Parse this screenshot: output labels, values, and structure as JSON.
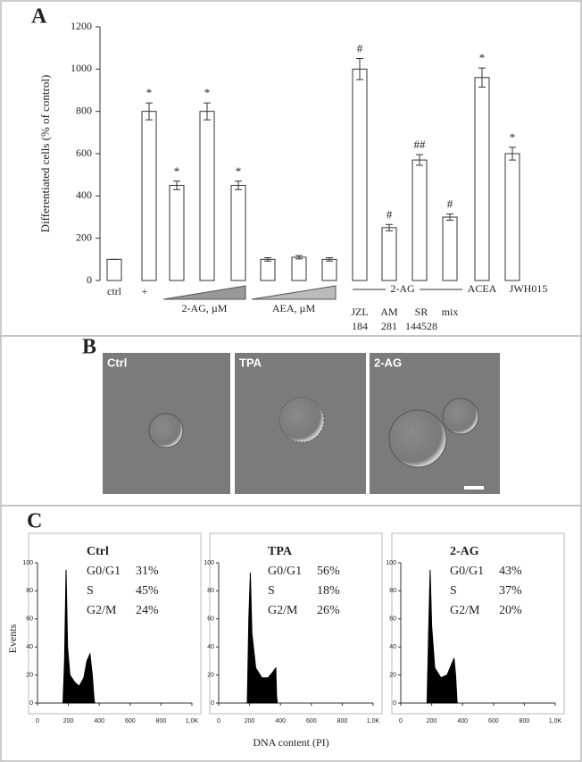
{
  "panel_labels": [
    "A",
    "B",
    "C"
  ],
  "images": {
    "labels": [
      "Ctrl",
      "TPA",
      "2-AG"
    ]
  },
  "panel_c": {
    "ylabel": "Events",
    "xlabel": "DNA content (PI)"
  },
  "chart_data": [
    {
      "type": "bar",
      "ylabel": "Differentiated cells (% of control)",
      "categories": [
        "ctrl",
        "+",
        null,
        null,
        null,
        null,
        null,
        null,
        "JZL",
        "AM",
        "SR",
        "mix",
        "ACEA",
        "JWH015"
      ],
      "category_sublabels": [
        null,
        null,
        null,
        null,
        null,
        null,
        null,
        null,
        "184",
        "281",
        "144528",
        null,
        null,
        null
      ],
      "group_labels": [
        "2-AG, µM",
        "AEA, µM",
        "2-AG"
      ],
      "values": [
        100,
        800,
        450,
        800,
        450,
        100,
        110,
        100,
        1000,
        250,
        570,
        300,
        960,
        600
      ],
      "errors": [
        0,
        40,
        20,
        40,
        20,
        8,
        8,
        8,
        50,
        15,
        25,
        15,
        45,
        30
      ],
      "significance": [
        null,
        "*",
        "*",
        "*",
        "*",
        null,
        null,
        null,
        "#",
        "#",
        "##",
        "#",
        "*",
        "*"
      ],
      "ylim": [
        0,
        1200
      ],
      "yticks": [
        0,
        200,
        400,
        600,
        800,
        1000,
        1200
      ],
      "color": "#ffffff"
    },
    {
      "type": "area",
      "title": "Ctrl",
      "phases": [
        {
          "name": "G0/G1",
          "share": "31%"
        },
        {
          "name": "S",
          "share": "45%"
        },
        {
          "name": "G2/M",
          "share": "24%"
        }
      ],
      "x": [
        165,
        175,
        185,
        195,
        210,
        240,
        270,
        300,
        320,
        340,
        355,
        365,
        370
      ],
      "values": [
        0,
        30,
        95,
        40,
        20,
        15,
        12,
        18,
        30,
        35,
        20,
        5,
        0
      ],
      "xlim": [
        0,
        1000
      ],
      "ylim": [
        0,
        100
      ],
      "xticks": [
        0,
        200,
        400,
        600,
        800,
        {
          "value": 1000,
          "label": "1,0K"
        }
      ],
      "yticks": [
        0,
        20,
        40,
        60,
        80,
        100
      ],
      "color": "#000000"
    },
    {
      "type": "area",
      "title": "TPA",
      "phases": [
        {
          "name": "G0/G1",
          "share": "56%"
        },
        {
          "name": "S",
          "share": "18%"
        },
        {
          "name": "G2/M",
          "share": "26%"
        }
      ],
      "x": [
        185,
        195,
        205,
        215,
        240,
        280,
        320,
        350,
        370,
        375,
        380
      ],
      "values": [
        0,
        60,
        93,
        50,
        25,
        18,
        18,
        22,
        25,
        5,
        0
      ],
      "xlim": [
        0,
        1000
      ],
      "ylim": [
        0,
        100
      ],
      "xticks": [
        0,
        200,
        400,
        600,
        800,
        {
          "value": 1000,
          "label": "1,0K"
        }
      ],
      "yticks": [
        0,
        20,
        40,
        60,
        80,
        100
      ],
      "color": "#000000"
    },
    {
      "type": "area",
      "title": "2-AG",
      "phases": [
        {
          "name": "G0/G1",
          "share": "43%"
        },
        {
          "name": "S",
          "share": "37%"
        },
        {
          "name": "G2/M",
          "share": "20%"
        }
      ],
      "x": [
        170,
        180,
        190,
        200,
        220,
        260,
        300,
        330,
        345,
        355,
        365
      ],
      "values": [
        0,
        50,
        95,
        55,
        25,
        18,
        20,
        28,
        32,
        20,
        0
      ],
      "xlim": [
        0,
        1000
      ],
      "ylim": [
        0,
        100
      ],
      "xticks": [
        0,
        200,
        400,
        600,
        800,
        {
          "value": 1000,
          "label": "1,0K"
        }
      ],
      "yticks": [
        0,
        20,
        40,
        60,
        80,
        100
      ],
      "color": "#000000"
    }
  ]
}
